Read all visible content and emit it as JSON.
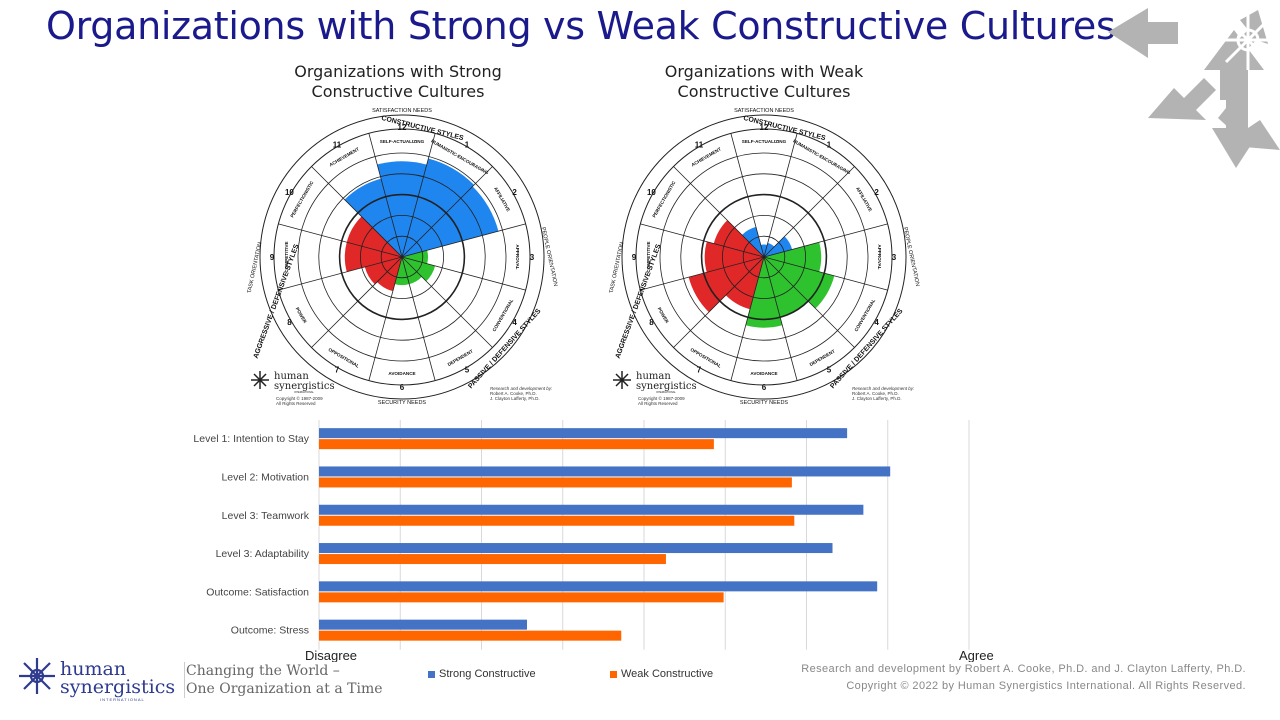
{
  "page": {
    "title": "Organizations with Strong vs Weak Constructive Cultures",
    "tagline_line1": "Changing the World –",
    "tagline_line2": "One Organization at a Time",
    "copyright_line1": "Research and development by Robert A. Cooke, Ph.D. and J. Clayton Lafferty, Ph.D.",
    "copyright_line2": "Copyright © 2022 by Human Synergistics International. All Rights Reserved.",
    "logo_text_line1": "human",
    "logo_text_line2": "synergistics",
    "logo_text_line3": "INTERNATIONAL"
  },
  "circumplex": {
    "styles": [
      "SELF-ACTUALIZING",
      "HUMANISTIC-ENCOURAGING",
      "AFFILIATIVE",
      "APPROVAL",
      "CONVENTIONAL",
      "DEPENDENT",
      "AVOIDANCE",
      "OPPOSITIONAL",
      "POWER",
      "COMPETITIVE",
      "PERFECTIONISTIC",
      "ACHIEVEMENT"
    ],
    "numbers": [
      "12",
      "1",
      "2",
      "3",
      "4",
      "5",
      "6",
      "7",
      "8",
      "9",
      "10",
      "11"
    ],
    "header_top": "CONSTRUCTIVE STYLES",
    "header_left": "AGGRESSIVE / DEFENSIVE STYLES",
    "header_right": "PASSIVE / DEFENSIVE STYLES",
    "satisfaction_needs": "SATISFACTION NEEDS",
    "security_needs": "SECURITY NEEDS",
    "people_orientation": "PEOPLE ORIENTATION",
    "task_orientation": "TASK ORIENTATION",
    "logo_line1": "human",
    "logo_line2": "synergistics",
    "logo_line3": "INTERNATIONAL",
    "copy_line1": "Copyright © 1987-2009",
    "copy_line2": "All Rights Reserved",
    "research_line1": "Research and development by:",
    "research_line2": "Robert A. Cooke, Ph.D.",
    "research_line3": "J. Clayton Lafferty, Ph.D.",
    "colors": {
      "constructive": "#1f86f0",
      "passive": "#2ec22e",
      "aggressive": "#e02828"
    }
  },
  "chart_data": [
    {
      "type": "polar",
      "name": "strong",
      "title_line1": "Organizations with Strong",
      "title_line2": "Constructive Cultures",
      "rmax": 100,
      "values": [
        92,
        98,
        96,
        25,
        33,
        27,
        27,
        34,
        37,
        55,
        55,
        78
      ]
    },
    {
      "type": "polar",
      "name": "weak",
      "title_line1": "Organizations with Weak",
      "title_line2": "Constructive Cultures",
      "rmax": 100,
      "values": [
        12,
        14,
        28,
        55,
        70,
        60,
        68,
        52,
        75,
        57,
        50,
        30
      ]
    },
    {
      "type": "bar",
      "orientation": "horizontal",
      "categories": [
        "Level 1: Intention to Stay",
        "Level 2: Motivation",
        "Level 3: Teamwork",
        "Level 3: Adaptability",
        "Outcome: Satisfaction",
        "Outcome: Stress"
      ],
      "series": [
        {
          "name": "Strong Constructive",
          "color": "#4472c4",
          "values": [
            6.5,
            7.03,
            6.7,
            6.32,
            6.87,
            2.56
          ]
        },
        {
          "name": "Weak Constructive",
          "color": "#ff6600",
          "values": [
            4.86,
            5.82,
            5.85,
            4.27,
            4.98,
            3.72
          ]
        }
      ],
      "xlim": [
        0,
        8
      ],
      "xlabel_left": "Disagree",
      "xlabel_right": "Agree",
      "grid": true
    }
  ]
}
